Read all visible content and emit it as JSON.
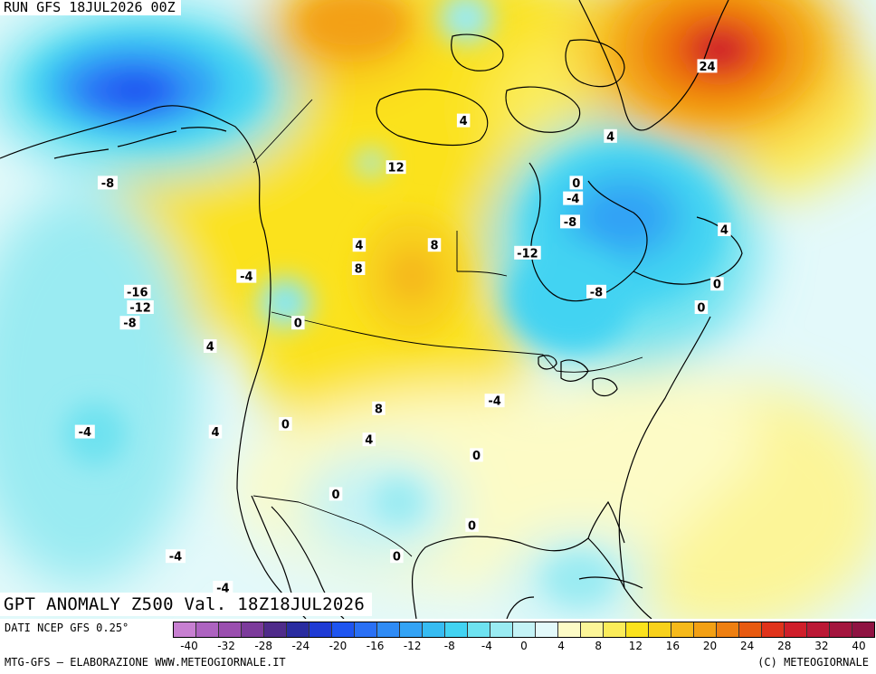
{
  "header": {
    "run": "RUN GFS 18JUL2026 00Z"
  },
  "title": "GPT ANOMALY Z500 Val. 18Z18JUL2026",
  "footer": {
    "source": "DATI NCEP GFS 0.25°",
    "credit": "MTG-GFS — ELABORAZIONE WWW.METEOGIORNALE.IT",
    "copyright": "(C) METEOGIORNALE"
  },
  "colorbar": {
    "tick_labels": [
      "-40",
      "-32",
      "-28",
      "-24",
      "-20",
      "-16",
      "-12",
      "-8",
      "-4",
      "0",
      "4",
      "8",
      "12",
      "16",
      "20",
      "24",
      "28",
      "32",
      "40"
    ],
    "colors": [
      "#c77fd1",
      "#ad63c0",
      "#9a4eaf",
      "#7c3b9b",
      "#4f2b8a",
      "#2a2ca0",
      "#1f3bd4",
      "#1f55f0",
      "#2a70f5",
      "#2f8bf5",
      "#33a3f5",
      "#37bcf2",
      "#42d3f2",
      "#6ee2f0",
      "#9aebf2",
      "#c4f3f6",
      "#e3f9fa",
      "#fdfbc6",
      "#fcf598",
      "#fbec5a",
      "#fbe21d",
      "#f8d11b",
      "#f6b91a",
      "#f3a014",
      "#ee7f11",
      "#e85a10",
      "#e0331b",
      "#cf1e2a",
      "#bb1835",
      "#a4153e",
      "#8f1342"
    ]
  },
  "contour_labels": [
    {
      "text": "-8",
      "lon": -171,
      "lat": 68
    },
    {
      "text": "-16",
      "lon": -161,
      "lat": 54
    },
    {
      "text": "-12",
      "lon": -160,
      "lat": 52
    },
    {
      "text": "-8",
      "lon": -162,
      "lat": 50
    },
    {
      "text": "-4",
      "lon": -137,
      "lat": 56
    },
    {
      "text": "4",
      "lon": -144,
      "lat": 47
    },
    {
      "text": "0",
      "lon": -125,
      "lat": 50
    },
    {
      "text": "-4",
      "lon": -170,
      "lat": 36
    },
    {
      "text": "4",
      "lon": -142,
      "lat": 36
    },
    {
      "text": "0",
      "lon": -127,
      "lat": 37
    },
    {
      "text": "-4",
      "lon": -150,
      "lat": 20
    },
    {
      "text": "-4",
      "lon": -140,
      "lat": 14
    },
    {
      "text": "12",
      "lon": -104,
      "lat": 70
    },
    {
      "text": "4",
      "lon": -88,
      "lat": 76
    },
    {
      "text": "4",
      "lon": -112,
      "lat": 60
    },
    {
      "text": "8",
      "lon": -112,
      "lat": 57
    },
    {
      "text": "8",
      "lon": -95,
      "lat": 60
    },
    {
      "text": "8",
      "lon": -107,
      "lat": 39
    },
    {
      "text": "4",
      "lon": -109,
      "lat": 35
    },
    {
      "text": "0",
      "lon": -116,
      "lat": 28
    },
    {
      "text": "0",
      "lon": -103,
      "lat": 20
    },
    {
      "text": "0",
      "lon": -87,
      "lat": 24
    },
    {
      "text": "0",
      "lon": -86,
      "lat": 33
    },
    {
      "text": "-4",
      "lon": -82,
      "lat": 40
    },
    {
      "text": "-12",
      "lon": -74,
      "lat": 59
    },
    {
      "text": "-8",
      "lon": -59,
      "lat": 54
    },
    {
      "text": "-8",
      "lon": -64,
      "lat": 63
    },
    {
      "text": "-4",
      "lon": -63,
      "lat": 66
    },
    {
      "text": "0",
      "lon": -62,
      "lat": 68
    },
    {
      "text": "4",
      "lon": -53,
      "lat": 74
    },
    {
      "text": "24",
      "lon": -27,
      "lat": 83
    },
    {
      "text": "4",
      "lon": -29,
      "lat": 62
    },
    {
      "text": "0",
      "lon": -32,
      "lat": 55
    },
    {
      "text": "0",
      "lon": -36,
      "lat": 52
    }
  ]
}
